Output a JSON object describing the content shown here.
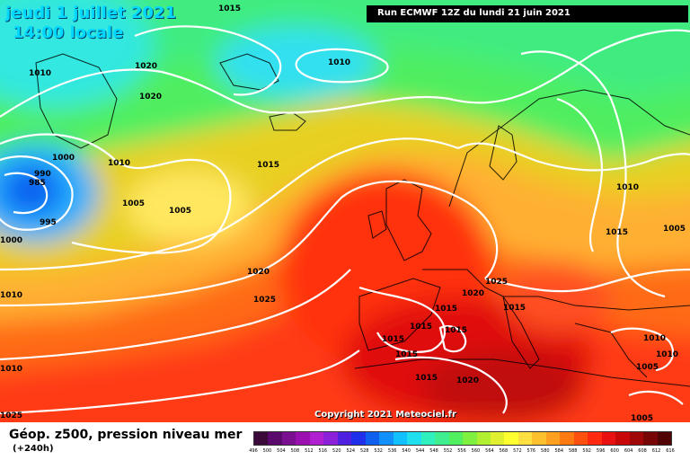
{
  "header": {
    "date": "jeudi 1 juillet 2021",
    "time": "14:00 locale",
    "run": "Run ECMWF 12Z du lundi 21 juin 2021"
  },
  "copyright": "Copyright 2021 Meteociel.fr",
  "footer": {
    "parameter": "Géop. z500, pression niveau mer",
    "lead": "(+240h)"
  },
  "legend": {
    "ticks": [
      "496",
      "500",
      "504",
      "508",
      "512",
      "516",
      "520",
      "524",
      "528",
      "532",
      "536",
      "540",
      "544",
      "548",
      "552",
      "556",
      "560",
      "564",
      "568",
      "572",
      "576",
      "580",
      "584",
      "588",
      "592",
      "596",
      "600",
      "604",
      "608",
      "612",
      "616"
    ],
    "colors": [
      "#3a0a3a",
      "#5a0a6a",
      "#7a1090",
      "#9a10b0",
      "#b020d0",
      "#8a20d8",
      "#5020e0",
      "#2030ea",
      "#1060f0",
      "#1090f8",
      "#10c0ff",
      "#20e0f0",
      "#30f0c0",
      "#40f090",
      "#50f060",
      "#80f040",
      "#b0f030",
      "#e0f030",
      "#ffff30",
      "#ffe040",
      "#ffc030",
      "#ffa020",
      "#ff7a10",
      "#ff5010",
      "#ff2a10",
      "#e81010",
      "#c80808",
      "#a00808",
      "#780606",
      "#500404"
    ]
  },
  "isobars": [
    "1015",
    "1010",
    "1020",
    "1020",
    "1010",
    "1000",
    "990",
    "985",
    "995",
    "1000",
    "1010",
    "1005",
    "1005",
    "1015",
    "1010",
    "1010",
    "1015",
    "1005",
    "1020",
    "1025",
    "1010",
    "1025",
    "1020",
    "1015",
    "1015",
    "1015",
    "1015",
    "1015",
    "1015",
    "1020",
    "1025",
    "1015",
    "1010",
    "1010",
    "1005",
    "1005"
  ]
}
